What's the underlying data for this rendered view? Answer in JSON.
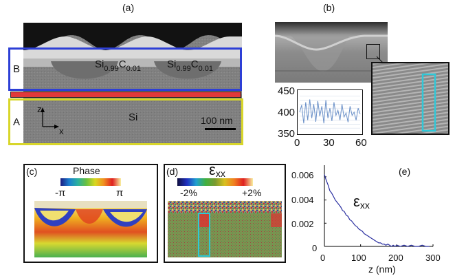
{
  "panel_labels": {
    "a": "(a)",
    "b": "(b)",
    "c": "(c)",
    "d": "(d)",
    "e": "(e)"
  },
  "panel_a": {
    "region_b": "B",
    "region_a": "A",
    "sige_left": {
      "base": "Si",
      "sub1": "0.99",
      "mid": "C",
      "sub2": "0.01"
    },
    "sige_right": {
      "base": "Si",
      "sub1": "0.99",
      "mid": "C",
      "sub2": "0.01"
    },
    "substrate": "Si",
    "scalebar": "100 nm",
    "axis_z": "z",
    "axis_x": "x",
    "colors": {
      "region_b_box": "#2d3fd6",
      "region_a_box": "#d8d62a",
      "interface_bar": "#e0393a"
    }
  },
  "panel_b": {
    "inset_y_ticks": [
      "450",
      "400",
      "350"
    ],
    "inset_x_ticks": [
      "0",
      "30",
      "60"
    ],
    "inset_line_color": "#6a90c8",
    "zoom_box_color": "#30c8d8"
  },
  "panel_c": {
    "title": "Phase",
    "min_label": "-π",
    "max_label": "π"
  },
  "panel_d": {
    "title": "ε",
    "title_sub": "xx",
    "min_label": "-2%",
    "max_label": "+2%"
  },
  "panel_e": {
    "series_label": "ε",
    "series_label_sub": "xx",
    "xlabel": "z (nm)",
    "x_ticks": [
      "0",
      "100",
      "200",
      "300"
    ],
    "y_ticks": [
      "0.006",
      "0.004",
      "0.002",
      "0"
    ],
    "line_color": "#2a2fa0"
  },
  "chart_data": [
    {
      "type": "line",
      "title": "",
      "xlabel": "",
      "ylabel": "",
      "x": [
        0,
        2,
        4,
        6,
        8,
        10,
        12,
        14,
        16,
        18,
        20,
        22,
        24,
        26,
        28,
        30,
        32,
        34,
        36,
        38,
        40,
        42,
        44,
        46,
        48,
        50,
        52,
        54,
        56,
        58,
        60
      ],
      "values": [
        400,
        418,
        372,
        425,
        380,
        432,
        385,
        420,
        376,
        428,
        390,
        415,
        372,
        430,
        385,
        410,
        378,
        425,
        392,
        405,
        380,
        420,
        388,
        398,
        375,
        415,
        392,
        400,
        380,
        410,
        395
      ],
      "xlim": [
        0,
        60
      ],
      "ylim": [
        350,
        450
      ],
      "grid": true
    },
    {
      "type": "line",
      "title": "",
      "xlabel": "z (nm)",
      "ylabel": "",
      "series": [
        {
          "name": "εxx",
          "x": [
            0,
            5,
            10,
            15,
            20,
            25,
            30,
            35,
            40,
            45,
            50,
            55,
            60,
            65,
            70,
            75,
            80,
            85,
            90,
            95,
            100,
            105,
            110,
            115,
            120,
            125,
            130,
            135,
            140,
            145,
            150,
            155,
            160,
            165,
            170,
            175,
            180,
            185,
            190,
            195,
            200,
            210,
            220,
            230,
            240,
            250,
            260,
            270,
            280,
            290
          ],
          "values": [
            0.0062,
            0.0057,
            0.0053,
            0.0048,
            0.0046,
            0.0043,
            0.004,
            0.0038,
            0.0036,
            0.0034,
            0.0031,
            0.003,
            0.0027,
            0.0026,
            0.0023,
            0.0022,
            0.002,
            0.0018,
            0.0017,
            0.0015,
            0.0014,
            0.0013,
            0.0011,
            0.001,
            0.0009,
            0.0008,
            0.0007,
            0.0006,
            0.0005,
            0.0004,
            0.0003,
            0.0003,
            0.0002,
            0.0002,
            0.0001,
            0.0002,
            0.0001,
            0.0,
            0.0001,
            0.0,
            0.0001,
            0.0,
            0.0001,
            0.0,
            0.0001,
            0.0,
            0.0,
            0.0001,
            0.0,
            0.0
          ]
        }
      ],
      "xlim": [
        0,
        300
      ],
      "ylim": [
        0,
        0.007
      ],
      "grid": false
    }
  ]
}
